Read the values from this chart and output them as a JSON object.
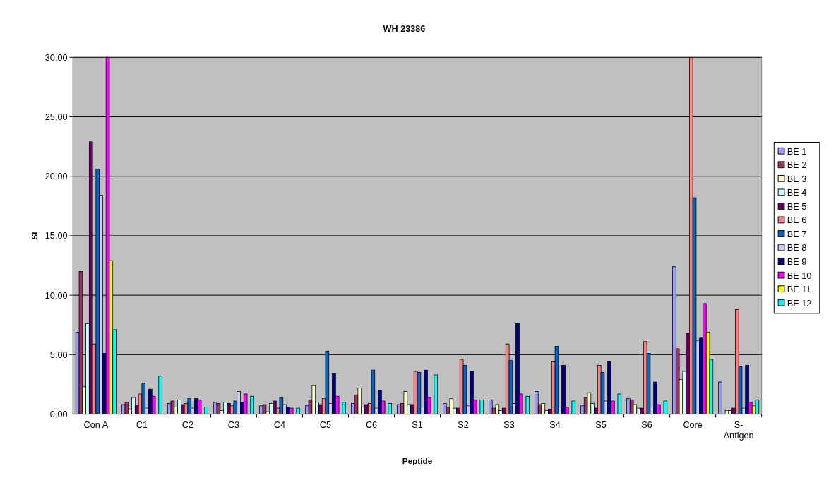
{
  "chart_data": {
    "type": "bar",
    "title": "WH 23386",
    "xlabel": "Peptide",
    "ylabel": "SI",
    "categories": [
      "Con A",
      "C1",
      "C2",
      "C3",
      "C4",
      "C5",
      "C6",
      "S1",
      "S2",
      "S3",
      "S4",
      "S5",
      "S6",
      "Core",
      "S-Antigen"
    ],
    "series": [
      {
        "name": "BE 1",
        "color": "#9999ff",
        "values": [
          6.9,
          0.8,
          0.9,
          1.0,
          0.7,
          0.7,
          0.9,
          0.8,
          0.9,
          1.2,
          1.9,
          0.7,
          1.3,
          12.4,
          2.7
        ]
      },
      {
        "name": "BE 2",
        "color": "#993366",
        "values": [
          12.0,
          1.0,
          1.1,
          0.9,
          0.8,
          1.2,
          1.6,
          0.9,
          0.6,
          0.5,
          0.8,
          1.4,
          1.2,
          5.5,
          0.0
        ]
      },
      {
        "name": "BE 3",
        "color": "#ffffcc",
        "values": [
          2.3,
          0.4,
          0.6,
          0.3,
          0.2,
          2.4,
          2.2,
          1.9,
          1.3,
          0.8,
          0.9,
          1.8,
          0.8,
          2.9,
          0.3
        ]
      },
      {
        "name": "BE 4",
        "color": "#ccffff",
        "values": [
          7.6,
          1.4,
          1.2,
          1.0,
          0.9,
          1.0,
          0.6,
          0.8,
          0.5,
          0.3,
          0.3,
          0.9,
          0.5,
          3.6,
          0.3
        ]
      },
      {
        "name": "BE 5",
        "color": "#660066",
        "values": [
          22.9,
          0.7,
          0.8,
          0.9,
          1.1,
          0.8,
          0.8,
          0.8,
          0.5,
          0.5,
          0.4,
          0.5,
          0.5,
          6.8,
          0.5
        ]
      },
      {
        "name": "BE 6",
        "color": "#ff8080",
        "values": [
          5.9,
          1.7,
          0.9,
          0.7,
          0.5,
          1.3,
          0.9,
          3.6,
          4.6,
          5.9,
          4.4,
          4.1,
          6.1,
          30,
          8.8
        ]
      },
      {
        "name": "BE 7",
        "color": "#0066cc",
        "values": [
          20.6,
          2.6,
          1.3,
          1.1,
          1.4,
          5.3,
          3.7,
          3.5,
          4.1,
          4.5,
          5.7,
          3.5,
          5.1,
          18.2,
          4.0
        ]
      },
      {
        "name": "BE 8",
        "color": "#ccccff",
        "values": [
          18.4,
          0.5,
          0.5,
          1.9,
          0.8,
          0.9,
          0.5,
          0.6,
          0.7,
          0.9,
          0.6,
          1.1,
          0.6,
          6.2,
          0.5
        ]
      },
      {
        "name": "BE 9",
        "color": "#000080",
        "values": [
          5.1,
          2.1,
          1.3,
          1.0,
          0.6,
          3.4,
          2.0,
          3.7,
          3.6,
          7.6,
          4.1,
          4.4,
          2.7,
          6.4,
          4.1
        ]
      },
      {
        "name": "BE 10",
        "color": "#ff00ff",
        "values": [
          30,
          1.5,
          1.2,
          1.7,
          0.5,
          1.5,
          1.1,
          1.4,
          1.2,
          1.7,
          0.6,
          1.1,
          0.8,
          9.3,
          1.0
        ]
      },
      {
        "name": "BE 11",
        "color": "#ffff00",
        "values": [
          12.9,
          null,
          null,
          null,
          null,
          null,
          null,
          null,
          null,
          null,
          null,
          null,
          null,
          6.9,
          0.7
        ]
      },
      {
        "name": "BE 12",
        "color": "#00ffff",
        "values": [
          7.1,
          3.2,
          0.6,
          1.5,
          0.5,
          1.0,
          0.9,
          3.3,
          1.2,
          1.5,
          1.1,
          1.7,
          1.1,
          4.6,
          1.2
        ]
      }
    ],
    "ylim": [
      0,
      30
    ],
    "yticks": [
      {
        "value": 0,
        "label": "0,00"
      },
      {
        "value": 5,
        "label": "5,00"
      },
      {
        "value": 10,
        "label": "10,00"
      },
      {
        "value": 15,
        "label": "15,00"
      },
      {
        "value": 20,
        "label": "20,00"
      },
      {
        "value": 25,
        "label": "25,00"
      },
      {
        "value": 30,
        "label": "30,00"
      }
    ],
    "grid": "y",
    "legend": "right"
  }
}
